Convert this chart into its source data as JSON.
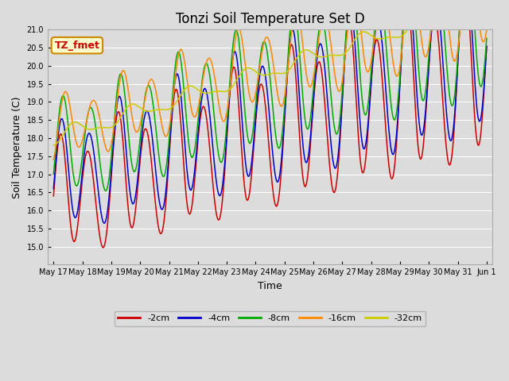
{
  "title": "Tonzi Soil Temperature Set D",
  "xlabel": "Time",
  "ylabel": "Soil Temperature (C)",
  "ylim": [
    14.5,
    21.0
  ],
  "yticks": [
    15.0,
    15.5,
    16.0,
    16.5,
    17.0,
    17.5,
    18.0,
    18.5,
    19.0,
    19.5,
    20.0,
    20.5,
    21.0
  ],
  "legend_labels": [
    "-2cm",
    "-4cm",
    "-8cm",
    "-16cm",
    "-32cm"
  ],
  "legend_colors": [
    "#cc0000",
    "#0000cc",
    "#00aa00",
    "#ff8800",
    "#cccc00"
  ],
  "annotation_text": "TZ_fmet",
  "annotation_color": "#cc0000",
  "annotation_bg": "#ffffcc",
  "annotation_border": "#cc8800",
  "bg_color": "#dcdcdc",
  "n_points": 720,
  "xtick_days": [
    17,
    18,
    19,
    20,
    21,
    22,
    23,
    24,
    25,
    26,
    27,
    28,
    29,
    30,
    31,
    32
  ]
}
